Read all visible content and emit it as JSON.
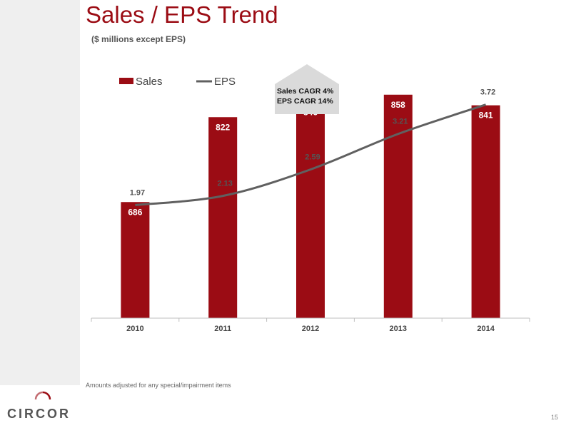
{
  "slide": {
    "title": "Sales / EPS Trend",
    "subtitle": "($ millions except EPS)",
    "footnote": "Amounts adjusted for any special/impairment items",
    "page_number": "15",
    "logo_text": "CIRCOR"
  },
  "callout": {
    "line1": "Sales CAGR 4%",
    "line2": "EPS CAGR  14%"
  },
  "colors": {
    "brand": "#9b0c14",
    "bar": "#9b0c14",
    "line": "#606060",
    "callout_fill": "#dadada",
    "axis": "#bfbfbf"
  },
  "chart_data": {
    "type": "bar",
    "categories": [
      "2010",
      "2011",
      "2012",
      "2013",
      "2014"
    ],
    "series": [
      {
        "name": "Sales",
        "type": "bar",
        "values": [
          686,
          822,
          846,
          858,
          841
        ],
        "labels": [
          "686",
          "822",
          "846",
          "858",
          "841"
        ]
      },
      {
        "name": "EPS",
        "type": "line",
        "values": [
          1.97,
          2.13,
          2.59,
          3.21,
          3.72
        ],
        "labels": [
          "1.97",
          "2.13",
          "2.59",
          "3.21",
          "3.72"
        ]
      }
    ],
    "sales_axis_range": [
      500,
      900
    ],
    "eps_axis_range": [
      0,
      4.35
    ],
    "legend_position": "top-left",
    "grid": false
  }
}
